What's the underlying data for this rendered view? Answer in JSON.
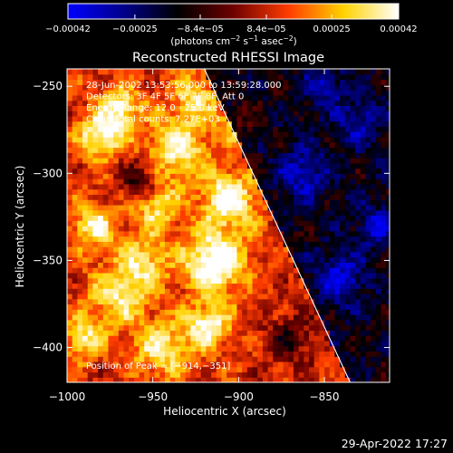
{
  "chart_data": {
    "type": "heatmap",
    "title": "Reconstructed RHESSI Image",
    "xlabel": "Heliocentric X (arcsec)",
    "ylabel": "Heliocentric Y (arcsec)",
    "xlim": [
      -1000,
      -812
    ],
    "ylim": [
      -420,
      -240
    ],
    "x_ticks": [
      -1000,
      -950,
      -900,
      -850
    ],
    "y_ticks": [
      -250,
      -300,
      -350,
      -400
    ],
    "x_tick_labels": [
      "−1000",
      "−950",
      "−900",
      "−850"
    ],
    "y_tick_labels": [
      "−250",
      "−300",
      "−350",
      "−400"
    ],
    "colorbar": {
      "range": [
        -0.00042,
        0.00042
      ],
      "tick_values": [
        -0.00042,
        -0.00025,
        -8.4e-05,
        8.4e-05,
        0.00025,
        0.00042
      ],
      "tick_labels": [
        "−0.00042",
        "−0.00025",
        "−8.4e−05",
        "8.4e−05",
        "0.00025",
        "0.00042"
      ],
      "unit_label_main": "(photons cm",
      "unit_exp1": "−2",
      "unit_label_mid": " s",
      "unit_exp2": "−1",
      "unit_label_end": " asec",
      "unit_exp3": "−2",
      "unit_label_close": ")",
      "colormap": [
        "#0000ff",
        "#00008c",
        "#000000",
        "#6e0000",
        "#ff3c00",
        "#ffd200",
        "#ffffff"
      ]
    },
    "annotations": [
      "28-Jun-2002 13:53:56.000 to 13:59:28.000",
      "Detectors: 3F 4F 5F 6F 7F 8F, Att 0",
      "Energy Range: 12.0 - 25.0 keV",
      "Clean    Total counts: 7.27E+03"
    ],
    "peak_label": "Position of Peak = [−914,−351]",
    "peak": [
      -914,
      -351
    ],
    "limb_line": {
      "x": [
        -920,
        -835
      ],
      "y": [
        -240,
        -420
      ]
    },
    "hot_spots": [
      {
        "x": -914,
        "y": -351,
        "r": 12,
        "v": 1.0
      },
      {
        "x": -906,
        "y": -315,
        "r": 11,
        "v": 0.85
      },
      {
        "x": -980,
        "y": -278,
        "r": 9,
        "v": 0.8
      },
      {
        "x": -968,
        "y": -262,
        "r": 8,
        "v": 0.7
      },
      {
        "x": -935,
        "y": -285,
        "r": 12,
        "v": 0.7
      },
      {
        "x": -948,
        "y": -318,
        "r": 10,
        "v": 0.6
      },
      {
        "x": -985,
        "y": -330,
        "r": 9,
        "v": 0.65
      },
      {
        "x": -970,
        "y": -370,
        "r": 12,
        "v": 0.6
      },
      {
        "x": -990,
        "y": -395,
        "r": 8,
        "v": 0.6
      },
      {
        "x": -945,
        "y": -400,
        "r": 11,
        "v": 0.65
      },
      {
        "x": -918,
        "y": -388,
        "r": 9,
        "v": 0.75
      },
      {
        "x": -925,
        "y": -255,
        "r": 9,
        "v": 0.55
      },
      {
        "x": -955,
        "y": -350,
        "r": 10,
        "v": 0.55
      },
      {
        "x": -900,
        "y": -270,
        "r": 8,
        "v": 0.5
      }
    ],
    "cold_spots": [
      {
        "x": -958,
        "y": -305,
        "r": 8,
        "v": 0.6
      },
      {
        "x": -862,
        "y": -300,
        "r": 10,
        "v": 0.5
      },
      {
        "x": -840,
        "y": -360,
        "r": 10,
        "v": 0.55
      },
      {
        "x": -830,
        "y": -270,
        "r": 9,
        "v": 0.45
      },
      {
        "x": -870,
        "y": -395,
        "r": 10,
        "v": 0.45
      },
      {
        "x": -820,
        "y": -330,
        "r": 8,
        "v": 0.5
      },
      {
        "x": -850,
        "y": -250,
        "r": 8,
        "v": 0.45
      }
    ]
  },
  "footer": {
    "timestamp": "29-Apr-2022 17:27"
  }
}
